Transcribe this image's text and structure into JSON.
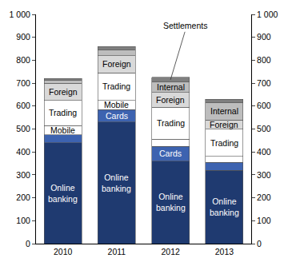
{
  "chart_data": {
    "type": "bar",
    "stacked": true,
    "grid": false,
    "categories": [
      "2010",
      "2011",
      "2012",
      "2013"
    ],
    "series": [
      {
        "name": "Online banking",
        "color": "#1f3a70",
        "values": [
          440,
          530,
          360,
          320
        ]
      },
      {
        "name": "Cards",
        "color": "#3d63b0",
        "values": [
          35,
          55,
          65,
          35
        ]
      },
      {
        "name": "Mobile",
        "color": "#ffffff",
        "values": [
          40,
          40,
          30,
          25
        ]
      },
      {
        "name": "Trading",
        "color": "#ffffff",
        "values": [
          110,
          120,
          140,
          120
        ]
      },
      {
        "name": "Foreign",
        "color": "#d9d9d9",
        "values": [
          75,
          75,
          65,
          40
        ]
      },
      {
        "name": "Internal",
        "color": "#bdbdbd",
        "values": [
          12,
          25,
          45,
          75
        ]
      },
      {
        "name": "Settlements",
        "color": "#7f7f7f",
        "values": [
          8,
          15,
          20,
          15
        ]
      }
    ],
    "ylim": [
      0,
      1000
    ],
    "yticks": [
      0,
      100,
      200,
      300,
      400,
      500,
      600,
      700,
      800,
      900,
      {
        "value": 1000,
        "label": "1 000"
      }
    ],
    "y2lim": [
      0,
      1000
    ],
    "y2ticks": [
      0,
      100,
      200,
      300,
      400,
      500,
      600,
      700,
      800,
      900,
      {
        "value": 1000,
        "label": "1 000"
      }
    ],
    "annotations": [
      {
        "text": "Online banking",
        "x": "2010",
        "series": "Online banking"
      },
      {
        "text": "Mobile",
        "x": "2010",
        "series": "Mobile"
      },
      {
        "text": "Trading",
        "x": "2010",
        "series": "Trading"
      },
      {
        "text": "Foreign",
        "x": "2010",
        "series": "Foreign"
      },
      {
        "text": "Online banking",
        "x": "2011",
        "series": "Online banking"
      },
      {
        "text": "Cards",
        "x": "2011",
        "series": "Cards"
      },
      {
        "text": "Mobile",
        "x": "2011",
        "series": "Mobile"
      },
      {
        "text": "Trading",
        "x": "2011",
        "series": "Trading"
      },
      {
        "text": "Foreign",
        "x": "2011",
        "series": "Foreign"
      },
      {
        "text": "Online banking",
        "x": "2012",
        "series": "Online banking"
      },
      {
        "text": "Cards",
        "x": "2012",
        "series": "Cards"
      },
      {
        "text": "Trading",
        "x": "2012",
        "series": "Trading"
      },
      {
        "text": "Foreign",
        "x": "2012",
        "series": "Foreign"
      },
      {
        "text": "Internal",
        "x": "2012",
        "series": "Internal"
      },
      {
        "text": "Settlements",
        "x": "2012",
        "series": "Settlements"
      },
      {
        "text": "Online banking",
        "x": "2013",
        "series": "Online banking"
      },
      {
        "text": "Trading",
        "x": "2013",
        "series": "Trading"
      },
      {
        "text": "Foreign",
        "x": "2013",
        "series": "Foreign"
      },
      {
        "text": "Internal",
        "x": "2013",
        "series": "Internal"
      }
    ]
  }
}
